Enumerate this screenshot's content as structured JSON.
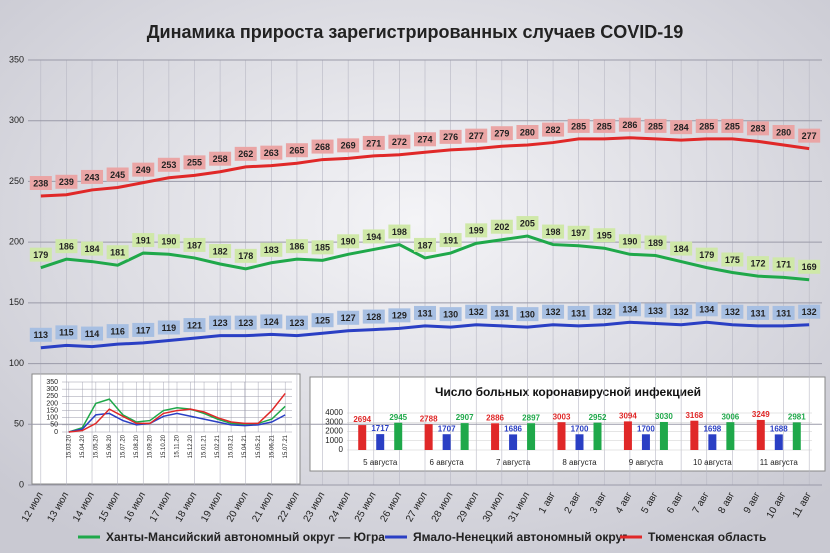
{
  "chart_data": [
    {
      "type": "line",
      "title": "Динамика прироста зарегистрированных случаев COVID-19",
      "categories": [
        "12 июл",
        "13 июл",
        "14 июл",
        "15 июл",
        "16 июл",
        "17 июл",
        "18 июл",
        "19 июл",
        "20 июл",
        "21 июл",
        "22 июл",
        "23 июл",
        "24 июл",
        "25 июл",
        "26 июл",
        "27 июл",
        "28 июл",
        "29 июл",
        "30 июл",
        "31 июл",
        "1 авг",
        "2 авг",
        "3 авг",
        "4 авг",
        "5 авг",
        "6 авг",
        "7 авг",
        "8 авг",
        "9 авг",
        "10 авг",
        "11 авг"
      ],
      "series": [
        {
          "name": "Ханты-Мансийский автономный округ — Югра",
          "color": "#1fa84a",
          "label_bg": "#cfe8a8",
          "values": [
            179,
            186,
            184,
            181,
            191,
            190,
            187,
            182,
            178,
            183,
            186,
            185,
            190,
            194,
            198,
            187,
            191,
            199,
            202,
            205,
            198,
            197,
            195,
            190,
            189,
            184,
            179,
            175,
            172,
            171,
            169
          ]
        },
        {
          "name": "Ямало-Ненецкий автономный округ",
          "color": "#2a3fc4",
          "label_bg": "#a7bfe2",
          "values": [
            113,
            115,
            114,
            116,
            117,
            119,
            121,
            123,
            123,
            124,
            123,
            125,
            127,
            128,
            129,
            131,
            130,
            132,
            131,
            130,
            132,
            131,
            132,
            134,
            133,
            132,
            134,
            132,
            131,
            131,
            132
          ]
        },
        {
          "name": "Тюменская область",
          "color": "#e02828",
          "label_bg": "#eaa5a5",
          "values": [
            238,
            239,
            243,
            245,
            249,
            253,
            255,
            258,
            262,
            263,
            265,
            268,
            269,
            271,
            272,
            274,
            276,
            277,
            279,
            280,
            282,
            285,
            285,
            286,
            285,
            284,
            285,
            285,
            283,
            280,
            277
          ]
        }
      ],
      "ylim": [
        0,
        350
      ],
      "yticks": [
        0,
        50,
        100,
        150,
        200,
        250,
        300,
        350
      ],
      "grid": true,
      "data_labels": true,
      "legend": "bottom"
    },
    {
      "type": "line",
      "categories": [
        "15.03.20",
        "15.04.20",
        "15.05.20",
        "15.06.20",
        "15.07.20",
        "15.08.20",
        "15.09.20",
        "15.10.20",
        "15.11.20",
        "15.12.20",
        "15.01.21",
        "15.02.21",
        "15.03.21",
        "15.04.21",
        "15.05.21",
        "15.06.21",
        "15.07.21"
      ],
      "series": [
        {
          "color": "#1fa84a",
          "values": [
            0,
            30,
            200,
            230,
            120,
            70,
            80,
            150,
            170,
            160,
            130,
            90,
            60,
            55,
            60,
            90,
            180
          ]
        },
        {
          "color": "#2a3fc4",
          "values": [
            0,
            20,
            120,
            130,
            80,
            50,
            60,
            110,
            130,
            110,
            90,
            70,
            50,
            45,
            50,
            70,
            120
          ]
        },
        {
          "color": "#e02828",
          "values": [
            0,
            10,
            60,
            160,
            110,
            60,
            60,
            130,
            150,
            160,
            140,
            100,
            70,
            60,
            60,
            150,
            270
          ]
        }
      ],
      "ylim": [
        0,
        350
      ],
      "yticks": [
        0,
        50,
        100,
        150,
        200,
        250,
        300,
        350
      ],
      "grid": true
    },
    {
      "type": "bar",
      "title": "Число больных коронавирусной инфекцией",
      "categories": [
        "5 августа",
        "6 августа",
        "7 августа",
        "8 августа",
        "9 августа",
        "10 августа",
        "11 августа"
      ],
      "series": [
        {
          "color": "#e02828",
          "values": [
            2694,
            2788,
            2886,
            3003,
            3094,
            3168,
            3249
          ]
        },
        {
          "color": "#2a3fc4",
          "values": [
            1717,
            1707,
            1686,
            1700,
            1700,
            1698,
            1688
          ]
        },
        {
          "color": "#1fa84a",
          "values": [
            2945,
            2907,
            2897,
            2952,
            3030,
            3006,
            2981
          ]
        }
      ],
      "ylim": [
        0,
        4000
      ],
      "yticks": [
        0,
        1000,
        2000,
        3000,
        4000
      ],
      "grid": true
    }
  ]
}
